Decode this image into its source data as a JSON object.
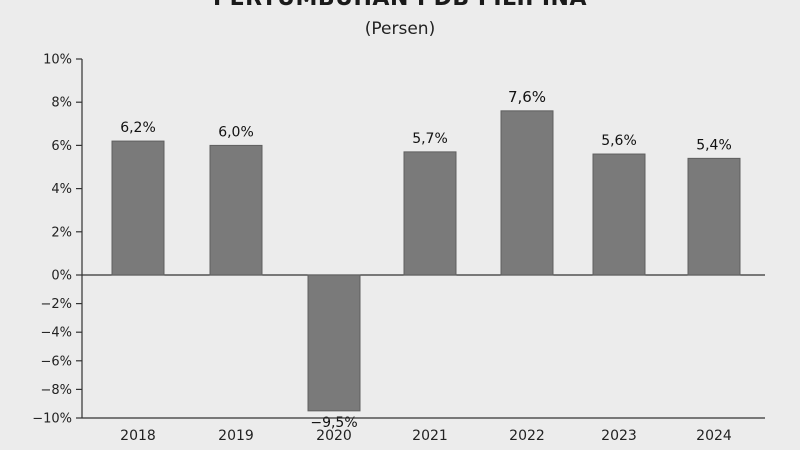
{
  "chart_data": {
    "type": "bar",
    "title": "PERTUMBUHAN PDB FILIPINA",
    "subtitle": "(Persen)",
    "categories": [
      "2018",
      "2019",
      "2020",
      "2021",
      "2022",
      "2023",
      "2024"
    ],
    "values": [
      6.2,
      6.0,
      -9.5,
      5.7,
      7.6,
      5.6,
      5.4
    ],
    "data_labels": [
      "6,2%",
      "6,0%",
      "−9,5%",
      "5,7%",
      "7,6%",
      "5,6%",
      "5,4%"
    ],
    "y_ticks": [
      10,
      8,
      6,
      4,
      2,
      0,
      -2,
      -4,
      -6,
      -8,
      -10
    ],
    "y_tick_labels": [
      "10%",
      "8%",
      "6%",
      "4%",
      "2%",
      "0%",
      "−2%",
      "−4%",
      "−6%",
      "−8%",
      "−10%"
    ],
    "ylim": [
      -10,
      10
    ],
    "xlabel": "",
    "ylabel": "",
    "grid": false,
    "colors": {
      "background": "#ececec",
      "bar": "#7a7a7a",
      "bar_stroke": "#5f5f5f",
      "axis": "#333333"
    }
  }
}
